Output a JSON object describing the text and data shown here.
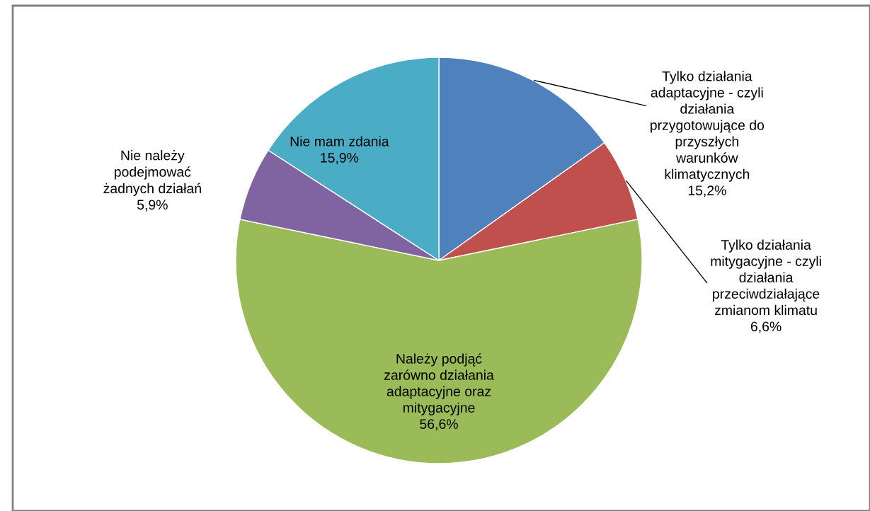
{
  "chart_data": {
    "type": "pie",
    "categories": [
      "Tylko działania\nadaptacyjne - czyli\ndziałania\nprzygotowujące do\nprzyszłych\nwarunków\nklimatycznych",
      "Tylko działania\nmitygacyjne - czyli\ndziałania\nprzeciwdziałające\nzmianom klimatu",
      "Należy podjąć\nzarówno działania\nadaptacyjne oraz\nmitygacyjne",
      "Nie należy\npodejmować\nżadnych działań",
      "Nie mam zdania"
    ],
    "values": [
      15.2,
      6.6,
      56.6,
      5.9,
      15.9
    ],
    "value_labels": [
      "15,2%",
      "6,6%",
      "56,6%",
      "5,9%",
      "15,9%"
    ],
    "colors": [
      "#4f81bd",
      "#c0504d",
      "#9bbb59",
      "#8064a2",
      "#4bacc6"
    ]
  }
}
